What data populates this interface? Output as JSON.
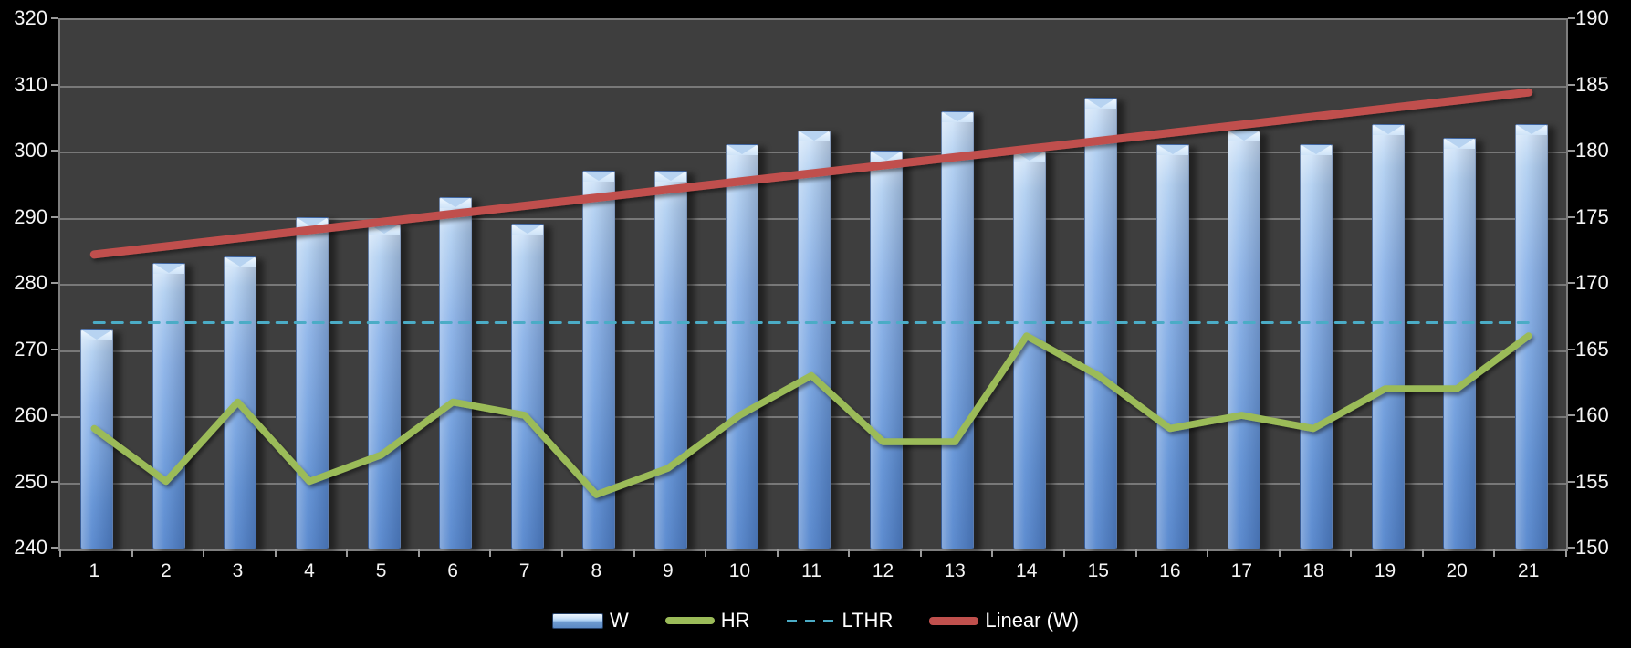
{
  "chart_data": {
    "type": "combo",
    "categories": [
      1,
      2,
      3,
      4,
      5,
      6,
      7,
      8,
      9,
      10,
      11,
      12,
      13,
      14,
      15,
      16,
      17,
      18,
      19,
      20,
      21
    ],
    "series": [
      {
        "name": "W",
        "type": "bar",
        "axis": "left",
        "color": "#7FA8DC",
        "values": [
          273,
          283,
          284,
          290,
          289,
          293,
          289,
          297,
          297,
          301,
          303,
          300,
          306,
          300,
          308,
          301,
          303,
          301,
          304,
          302,
          304
        ]
      },
      {
        "name": "HR",
        "type": "line",
        "axis": "right",
        "color": "#9BBB59",
        "values": [
          159,
          155,
          161,
          155,
          157,
          161,
          160,
          154,
          156,
          160,
          163,
          158,
          158,
          166,
          163,
          159,
          160,
          159,
          162,
          162,
          166
        ]
      },
      {
        "name": "LTHR",
        "type": "dashed-line",
        "axis": "right",
        "color": "#4BACC6",
        "constant_value": 167
      },
      {
        "name": "Linear (W)",
        "type": "trendline",
        "axis": "left",
        "color": "#C0504D",
        "start": {
          "x": 1,
          "y": 284.3
        },
        "end": {
          "x": 21,
          "y": 308.8
        }
      }
    ],
    "left_axis": {
      "min": 240,
      "max": 320,
      "step": 10,
      "ticks": [
        "320",
        "310",
        "300",
        "290",
        "280",
        "270",
        "260",
        "250",
        "240"
      ]
    },
    "right_axis": {
      "min": 150,
      "max": 190,
      "step": 5,
      "ticks": [
        "190",
        "185",
        "180",
        "175",
        "170",
        "165",
        "160",
        "155",
        "150"
      ]
    },
    "x_axis": {
      "ticks": [
        "1",
        "2",
        "3",
        "4",
        "5",
        "6",
        "7",
        "8",
        "9",
        "10",
        "11",
        "12",
        "13",
        "14",
        "15",
        "16",
        "17",
        "18",
        "19",
        "20",
        "21"
      ]
    },
    "legend": {
      "position": "bottom",
      "items": [
        "W",
        "HR",
        "LTHR",
        "Linear (W)"
      ]
    },
    "layout": {
      "grid": "horizontal-on",
      "plot_background": "#3E3E3E",
      "page_background": "#000000",
      "gridline_color": "#787878",
      "axis_text_color": "#F5F5F5"
    }
  }
}
